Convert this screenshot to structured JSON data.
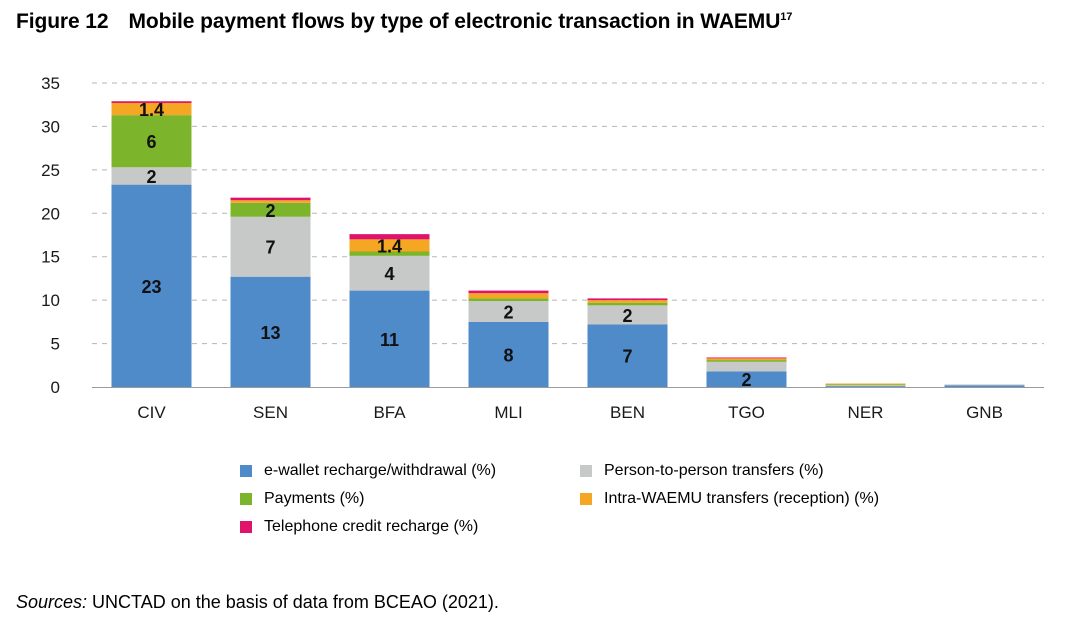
{
  "figure": {
    "number": "Figure 12",
    "title": "Mobile payment flows by type of electronic transaction in WAEMU",
    "footnote_ref": "17"
  },
  "colors": {
    "ewallet": "#4f8ac9",
    "p2p": "#c7c8c8",
    "payments": "#7cb52b",
    "intra": "#f5a623",
    "telephone": "#e0136b",
    "grid": "#b5b5b5",
    "axis": "#9a9a9a"
  },
  "chart_data": {
    "type": "bar",
    "stacked": true,
    "title": "Mobile payment flows by type of electronic transaction in WAEMU",
    "xlabel": "",
    "ylabel": "",
    "ylim": [
      0,
      35
    ],
    "yticks": [
      0,
      5,
      10,
      15,
      20,
      25,
      30,
      35
    ],
    "grid": true,
    "legend_position": "bottom",
    "categories": [
      "CIV",
      "SEN",
      "BFA",
      "MLI",
      "BEN",
      "TGO",
      "NER",
      "GNB"
    ],
    "series": [
      {
        "name": "e-wallet recharge/withdrawal (%)",
        "key": "ewallet",
        "values": [
          23.3,
          12.7,
          11.1,
          7.5,
          7.2,
          1.8,
          0.1,
          0.2
        ],
        "labels": [
          "23",
          "13",
          "11",
          "8",
          "7",
          "2",
          "",
          ""
        ]
      },
      {
        "name": "Person-to-person transfers (%)",
        "key": "p2p",
        "values": [
          2.0,
          6.9,
          4.0,
          2.4,
          2.2,
          1.1,
          0.1,
          0.1
        ],
        "labels": [
          "2",
          "7",
          "4",
          "2",
          "2",
          "",
          "",
          ""
        ]
      },
      {
        "name": "Payments (%)",
        "key": "payments",
        "values": [
          6.0,
          1.6,
          0.5,
          0.3,
          0.3,
          0.2,
          0.1,
          0.0
        ],
        "labels": [
          "6",
          "2",
          "",
          "",
          "",
          "",
          "",
          ""
        ]
      },
      {
        "name": "Intra-WAEMU transfers (reception) (%)",
        "key": "intra",
        "values": [
          1.4,
          0.3,
          1.4,
          0.6,
          0.3,
          0.2,
          0.1,
          0.0
        ],
        "labels": [
          "1.4",
          "",
          "1.4",
          "",
          "",
          "",
          "",
          ""
        ]
      },
      {
        "name": "Telephone credit recharge (%)",
        "key": "telephone",
        "values": [
          0.2,
          0.3,
          0.6,
          0.3,
          0.2,
          0.1,
          0.0,
          0.0
        ],
        "labels": [
          "",
          "",
          "",
          "",
          "",
          "",
          "",
          ""
        ]
      }
    ]
  },
  "source": {
    "label": "Sources:",
    "text": " UNCTAD on the basis of data from BCEAO (2021)."
  }
}
